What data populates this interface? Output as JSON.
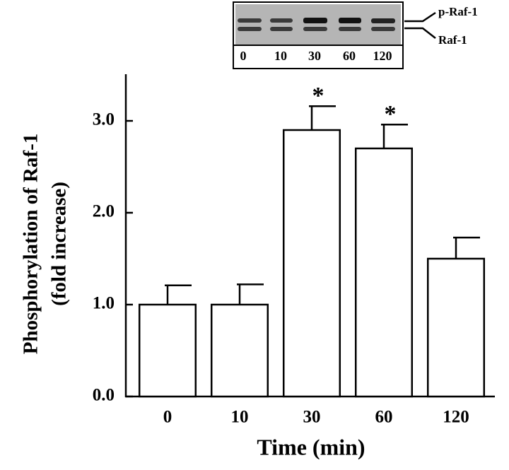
{
  "chart_data": {
    "type": "bar",
    "y_label": [
      "Phosphorylation of Raf-1",
      "(fold increase)"
    ],
    "x_label": "Time (min)",
    "categories": [
      "0",
      "10",
      "30",
      "60",
      "120"
    ],
    "values": [
      1.0,
      1.0,
      2.9,
      2.7,
      1.5
    ],
    "errors": [
      0.21,
      0.22,
      0.26,
      0.26,
      0.23
    ],
    "color": "#ffffff",
    "ylim": [
      0,
      3.5
    ],
    "yticks": [
      {
        "value": 0,
        "label": "0.0"
      },
      {
        "value": 1,
        "label": "1.0"
      },
      {
        "value": 2,
        "label": "2.0"
      },
      {
        "value": 3,
        "label": "3.0"
      }
    ],
    "annotations": [
      {
        "label": "*",
        "x": "30"
      },
      {
        "label": "*",
        "x": "60"
      }
    ],
    "inset": {
      "lane_labels": [
        "0",
        "10",
        "30",
        "60",
        "120"
      ],
      "band_labels": [
        "p-Raf-1",
        "Raf-1"
      ]
    }
  }
}
